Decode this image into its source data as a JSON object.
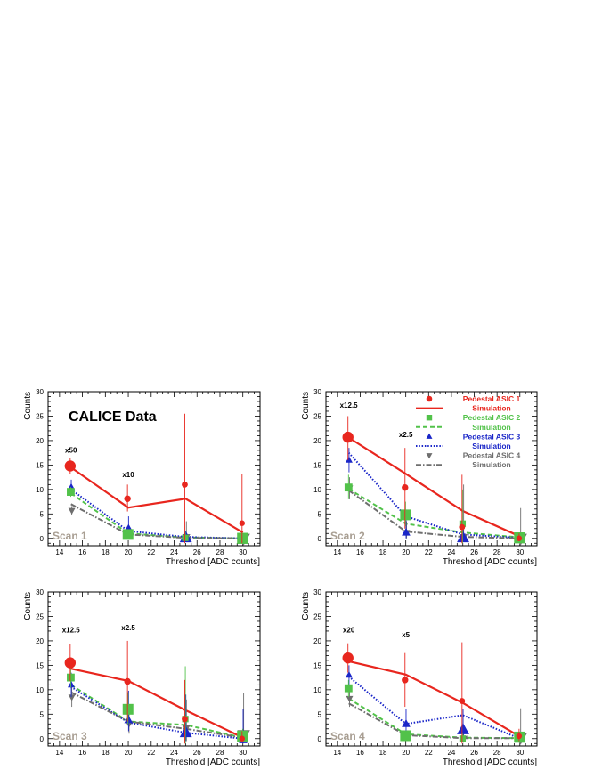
{
  "chart_data": [
    {
      "type": "scatter",
      "panel": "Scan 1",
      "label": "Scan 1",
      "annotation": "CALICE Data",
      "xlabel": "Threshold [ADC counts]",
      "ylabel": "Counts",
      "xlim": [
        13,
        31.5
      ],
      "ylim": [
        -1.5,
        30
      ],
      "xticks": [
        14,
        16,
        18,
        20,
        22,
        24,
        26,
        28,
        30
      ],
      "yticks": [
        0,
        5,
        10,
        15,
        20,
        25,
        30
      ],
      "scale_labels": [
        {
          "text": "x50",
          "x": 15,
          "y": 17.5
        },
        {
          "text": "x10",
          "x": 20,
          "y": 12.5
        }
      ],
      "series": [
        {
          "points": [
            {
              "x": 15,
              "y": 14.8,
              "lo": 13.2,
              "hi": 16.5
            },
            {
              "x": 20,
              "y": 8.1,
              "lo": 5.5,
              "hi": 11
            },
            {
              "x": 25,
              "y": 11,
              "lo": -1,
              "hi": 25.5
            },
            {
              "x": 30,
              "y": 3.1,
              "lo": -1,
              "hi": 13.2
            }
          ],
          "sim": [
            14.5,
            6.3,
            8.1,
            1.2
          ]
        },
        {
          "points": [
            {
              "x": 15,
              "y": 9.5,
              "lo": 8.5,
              "hi": 10.5
            },
            {
              "x": 20,
              "y": 0.8,
              "lo": 0,
              "hi": 1.5
            },
            {
              "x": 25,
              "y": 0.1,
              "lo": -0.2,
              "hi": 1.3
            },
            {
              "x": 30,
              "y": 0,
              "lo": -0.2,
              "hi": 0.5
            }
          ],
          "sim": [
            9.2,
            1,
            0.2,
            0
          ]
        },
        {
          "points": [
            {
              "x": 15,
              "y": 10.5,
              "lo": 9,
              "hi": 12
            },
            {
              "x": 20,
              "y": 2,
              "lo": 0.5,
              "hi": 4.5
            },
            {
              "x": 25,
              "y": 0.1,
              "lo": -0.2,
              "hi": 1.5
            },
            {
              "x": 30,
              "y": 0,
              "lo": -0.2,
              "hi": 0.5
            }
          ],
          "sim": [
            10,
            1.5,
            0.3,
            0
          ]
        },
        {
          "points": [
            {
              "x": 15,
              "y": 5.7,
              "lo": 4.8,
              "hi": 6.6
            },
            {
              "x": 20,
              "y": 0.5,
              "lo": 0,
              "hi": 1.5
            },
            {
              "x": 25,
              "y": 0.3,
              "lo": 0,
              "hi": 3.5
            },
            {
              "x": 30,
              "y": 0,
              "lo": -0.2,
              "hi": 0.5
            }
          ],
          "sim": [
            7,
            0.8,
            0.1,
            0
          ]
        }
      ]
    },
    {
      "type": "scatter",
      "panel": "Scan 2",
      "label": "Scan 2",
      "xlabel": "Threshold [ADC counts]",
      "ylabel": "Counts",
      "xlim": [
        13,
        31.5
      ],
      "ylim": [
        -1.5,
        30
      ],
      "xticks": [
        14,
        16,
        18,
        20,
        22,
        24,
        26,
        28,
        30
      ],
      "yticks": [
        0,
        5,
        10,
        15,
        20,
        25,
        30
      ],
      "scale_labels": [
        {
          "text": "x12.5",
          "x": 15,
          "y": 26.7
        },
        {
          "text": "x2.5",
          "x": 20,
          "y": 20.7
        }
      ],
      "series": [
        {
          "points": [
            {
              "x": 15,
              "y": 20.7,
              "lo": 16,
              "hi": 25
            },
            {
              "x": 20,
              "y": 10.4,
              "lo": 2,
              "hi": 18.5
            },
            {
              "x": 25,
              "y": 2.3,
              "lo": -1,
              "hi": 13
            },
            {
              "x": 30,
              "y": 0,
              "lo": -0.5,
              "hi": 1
            }
          ],
          "sim": [
            20.6,
            13.2,
            5.6,
            0.4
          ]
        },
        {
          "points": [
            {
              "x": 15,
              "y": 10.4,
              "lo": 8,
              "hi": 13
            },
            {
              "x": 20,
              "y": 4.8,
              "lo": 2.5,
              "hi": 7.5
            },
            {
              "x": 25,
              "y": 3,
              "lo": -1,
              "hi": 10
            },
            {
              "x": 30,
              "y": 0.1,
              "lo": -0.2,
              "hi": 1
            }
          ],
          "sim": [
            10.1,
            3,
            1.2,
            0.2
          ]
        },
        {
          "points": [
            {
              "x": 15,
              "y": 16,
              "lo": 13.5,
              "hi": 18.5
            },
            {
              "x": 20,
              "y": 1.2,
              "lo": 0,
              "hi": 4.5
            },
            {
              "x": 25,
              "y": 0.1,
              "lo": -0.3,
              "hi": 2
            },
            {
              "x": 30,
              "y": 0,
              "lo": -0.3,
              "hi": 0.5
            }
          ],
          "sim": [
            17.5,
            4.5,
            0.8,
            0.1
          ]
        },
        {
          "points": [
            {
              "x": 15,
              "y": 10.3,
              "lo": 8,
              "hi": 12.5
            },
            {
              "x": 20,
              "y": 1.2,
              "lo": 0,
              "hi": 3.5
            },
            {
              "x": 25,
              "y": 0.3,
              "lo": -0.5,
              "hi": 11
            },
            {
              "x": 30,
              "y": 0,
              "lo": -0.5,
              "hi": 6.2
            }
          ],
          "sim": [
            9.8,
            1.4,
            0.3,
            0
          ]
        }
      ]
    },
    {
      "type": "scatter",
      "panel": "Scan 3",
      "label": "Scan 3",
      "xlabel": "Threshold [ADC counts]",
      "ylabel": "Counts",
      "xlim": [
        13,
        31.5
      ],
      "ylim": [
        -1.5,
        30
      ],
      "xticks": [
        14,
        16,
        18,
        20,
        22,
        24,
        26,
        28,
        30
      ],
      "yticks": [
        0,
        5,
        10,
        15,
        20,
        25,
        30
      ],
      "scale_labels": [
        {
          "text": "x12.5",
          "x": 15,
          "y": 21.7
        },
        {
          "text": "x2.5",
          "x": 20,
          "y": 22.2
        }
      ],
      "series": [
        {
          "points": [
            {
              "x": 15,
              "y": 15.5,
              "lo": 11.8,
              "hi": 19.3
            },
            {
              "x": 20,
              "y": 11.7,
              "lo": 3.5,
              "hi": 20
            },
            {
              "x": 25,
              "y": 4,
              "lo": -1,
              "hi": 12
            },
            {
              "x": 30,
              "y": 0,
              "lo": -0.5,
              "hi": 1.5
            }
          ],
          "sim": [
            14.3,
            11.8,
            5.8,
            0.2
          ]
        },
        {
          "points": [
            {
              "x": 15,
              "y": 12.5,
              "lo": 10.5,
              "hi": 14.5
            },
            {
              "x": 20,
              "y": 6,
              "lo": 3,
              "hi": 9.5
            },
            {
              "x": 25,
              "y": 4,
              "lo": -1,
              "hi": 14.8
            },
            {
              "x": 30,
              "y": 0.5,
              "lo": -0.3,
              "hi": 2
            }
          ],
          "sim": [
            11,
            3.5,
            2.8,
            0.2
          ]
        },
        {
          "points": [
            {
              "x": 15,
              "y": 11,
              "lo": 8.5,
              "hi": 13.5
            },
            {
              "x": 20,
              "y": 3.8,
              "lo": 1.5,
              "hi": 9.8
            },
            {
              "x": 25,
              "y": 1.2,
              "lo": -0.5,
              "hi": 9
            },
            {
              "x": 30,
              "y": -0.3,
              "lo": -1,
              "hi": 6
            }
          ],
          "sim": [
            10.6,
            3.3,
            1.2,
            0
          ]
        },
        {
          "points": [
            {
              "x": 15,
              "y": 8.5,
              "lo": 6.5,
              "hi": 10.5
            },
            {
              "x": 20,
              "y": 3,
              "lo": 1,
              "hi": 5.5
            },
            {
              "x": 25,
              "y": 2.2,
              "lo": -0.5,
              "hi": 8
            },
            {
              "x": 30,
              "y": 0.8,
              "lo": -0.5,
              "hi": 9.3
            }
          ],
          "sim": [
            9.5,
            3.5,
            2,
            0.2
          ]
        }
      ]
    },
    {
      "type": "scatter",
      "panel": "Scan 4",
      "label": "Scan 4",
      "xlabel": "Threshold [ADC counts]",
      "ylabel": "Counts",
      "xlim": [
        13,
        31.5
      ],
      "ylim": [
        -1.5,
        30
      ],
      "xticks": [
        14,
        16,
        18,
        20,
        22,
        24,
        26,
        28,
        30
      ],
      "yticks": [
        0,
        5,
        10,
        15,
        20,
        25,
        30
      ],
      "scale_labels": [
        {
          "text": "x20",
          "x": 15,
          "y": 21.7
        },
        {
          "text": "x5",
          "x": 20,
          "y": 20.7
        }
      ],
      "series": [
        {
          "points": [
            {
              "x": 15,
              "y": 16.5,
              "lo": 13.5,
              "hi": 19.5
            },
            {
              "x": 20,
              "y": 12,
              "lo": 6.5,
              "hi": 17.5
            },
            {
              "x": 25,
              "y": 7.7,
              "lo": -1,
              "hi": 19.7
            },
            {
              "x": 30,
              "y": 0.5,
              "lo": -0.5,
              "hi": 2
            }
          ],
          "sim": [
            15.8,
            13.1,
            7.3,
            0.4
          ]
        },
        {
          "points": [
            {
              "x": 15,
              "y": 10.3,
              "lo": 8.5,
              "hi": 12
            },
            {
              "x": 20,
              "y": 0.6,
              "lo": -0.2,
              "hi": 1.5
            },
            {
              "x": 25,
              "y": 0,
              "lo": -0.3,
              "hi": 1
            },
            {
              "x": 30,
              "y": 0.3,
              "lo": -0.3,
              "hi": 1
            }
          ],
          "sim": [
            8.2,
            0.9,
            0.2,
            0.1
          ]
        },
        {
          "points": [
            {
              "x": 15,
              "y": 13,
              "lo": 11,
              "hi": 15
            },
            {
              "x": 20,
              "y": 3,
              "lo": 0.5,
              "hi": 6
            },
            {
              "x": 25,
              "y": 1.8,
              "lo": -0.5,
              "hi": 6
            },
            {
              "x": 30,
              "y": 0,
              "lo": -0.3,
              "hi": 0.5
            }
          ],
          "sim": [
            12.7,
            3,
            4.8,
            0
          ]
        },
        {
          "points": [
            {
              "x": 15,
              "y": 8.2,
              "lo": 6.5,
              "hi": 10
            },
            {
              "x": 20,
              "y": 0.7,
              "lo": 0,
              "hi": 1.5
            },
            {
              "x": 25,
              "y": 0,
              "lo": -0.3,
              "hi": 1
            },
            {
              "x": 30,
              "y": 0.2,
              "lo": -0.5,
              "hi": 6.2
            }
          ],
          "sim": [
            7.2,
            0.7,
            0.1,
            0.1
          ]
        }
      ]
    }
  ],
  "legend": {
    "placement": "top-right of Scan 2",
    "entries": [
      {
        "marker": "Pedestal ASIC 1",
        "line": "Simulation",
        "color": "#e8261e",
        "symbol": "circle",
        "dash": ""
      },
      {
        "marker": "Pedestal ASIC 2",
        "line": "Simulation",
        "color": "#52c24a",
        "symbol": "square",
        "dash": "5,3"
      },
      {
        "marker": "Pedestal ASIC 3",
        "line": "Simulation",
        "color": "#1a26c8",
        "symbol": "triangle-up",
        "dash": "1.5,1.8"
      },
      {
        "marker": "Pedestal ASIC 4",
        "line": "Simulation",
        "color": "#6e6e6e",
        "symbol": "triangle-down",
        "dash": "6,2,1.5,2"
      }
    ]
  }
}
